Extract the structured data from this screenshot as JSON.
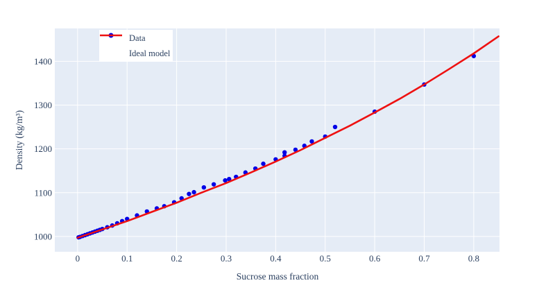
{
  "figure": {
    "background": "#ffffff",
    "plot_background": "#e5ecf6",
    "grid_color": "#ffffff",
    "text_color": "#2a3f5f",
    "marker_color": "#0000e6",
    "line_color": "#ee1111"
  },
  "legend": {
    "items": [
      {
        "label": "Data",
        "marker": "dot",
        "color": "#0000e6"
      },
      {
        "label": "Ideal model",
        "marker": "line",
        "color": "#ee1111"
      }
    ]
  },
  "chart_data": {
    "type": "scatter",
    "title": "",
    "xlabel": "Sucrose mass fraction",
    "ylabel": "Density (kg/m³)",
    "x_range": [
      -0.046,
      0.852
    ],
    "y_range": [
      965,
      1475
    ],
    "x_ticks": [
      0,
      0.1,
      0.2,
      0.3,
      0.4,
      0.5,
      0.6,
      0.7,
      0.8
    ],
    "x_tick_labels": [
      "0",
      "0.1",
      "0.2",
      "0.3",
      "0.4",
      "0.5",
      "0.6",
      "0.7",
      "0.8"
    ],
    "y_ticks": [
      1000,
      1100,
      1200,
      1300,
      1400
    ],
    "y_tick_labels": [
      "1000",
      "1100",
      "1200",
      "1300",
      "1400"
    ],
    "grid": true,
    "legend_position": "top-left-inside",
    "series": [
      {
        "name": "Data",
        "type": "scatter",
        "color": "#0000e6",
        "marker_radius": 3.2,
        "points": [
          [
            0.002,
            998
          ],
          [
            0.005,
            999
          ],
          [
            0.01,
            1001
          ],
          [
            0.015,
            1003
          ],
          [
            0.02,
            1005
          ],
          [
            0.025,
            1007
          ],
          [
            0.03,
            1009
          ],
          [
            0.035,
            1011
          ],
          [
            0.04,
            1013
          ],
          [
            0.045,
            1015
          ],
          [
            0.05,
            1017
          ],
          [
            0.06,
            1021
          ],
          [
            0.07,
            1025
          ],
          [
            0.08,
            1030
          ],
          [
            0.09,
            1035
          ],
          [
            0.1,
            1040
          ],
          [
            0.12,
            1048
          ],
          [
            0.14,
            1057
          ],
          [
            0.16,
            1064
          ],
          [
            0.175,
            1069
          ],
          [
            0.195,
            1078
          ],
          [
            0.21,
            1087
          ],
          [
            0.225,
            1097
          ],
          [
            0.235,
            1101
          ],
          [
            0.255,
            1112
          ],
          [
            0.275,
            1119
          ],
          [
            0.298,
            1128
          ],
          [
            0.306,
            1131
          ],
          [
            0.32,
            1136
          ],
          [
            0.339,
            1146
          ],
          [
            0.359,
            1155
          ],
          [
            0.375,
            1166
          ],
          [
            0.4,
            1176
          ],
          [
            0.418,
            1184
          ],
          [
            0.418,
            1192
          ],
          [
            0.44,
            1198
          ],
          [
            0.458,
            1207
          ],
          [
            0.473,
            1217
          ],
          [
            0.5,
            1228
          ],
          [
            0.52,
            1250
          ],
          [
            0.6,
            1285
          ],
          [
            0.7,
            1347
          ],
          [
            0.8,
            1412
          ]
        ]
      },
      {
        "name": "Ideal model",
        "type": "line",
        "color": "#ee1111",
        "line_width": 2.6,
        "points": [
          [
            0.0,
            997
          ],
          [
            0.05,
            1016
          ],
          [
            0.1,
            1035
          ],
          [
            0.15,
            1056
          ],
          [
            0.2,
            1077
          ],
          [
            0.25,
            1100
          ],
          [
            0.3,
            1122
          ],
          [
            0.35,
            1146
          ],
          [
            0.4,
            1171
          ],
          [
            0.45,
            1197
          ],
          [
            0.5,
            1225
          ],
          [
            0.55,
            1253
          ],
          [
            0.6,
            1283
          ],
          [
            0.65,
            1314
          ],
          [
            0.7,
            1347
          ],
          [
            0.75,
            1382
          ],
          [
            0.8,
            1418
          ],
          [
            0.85,
            1457
          ]
        ]
      }
    ]
  }
}
